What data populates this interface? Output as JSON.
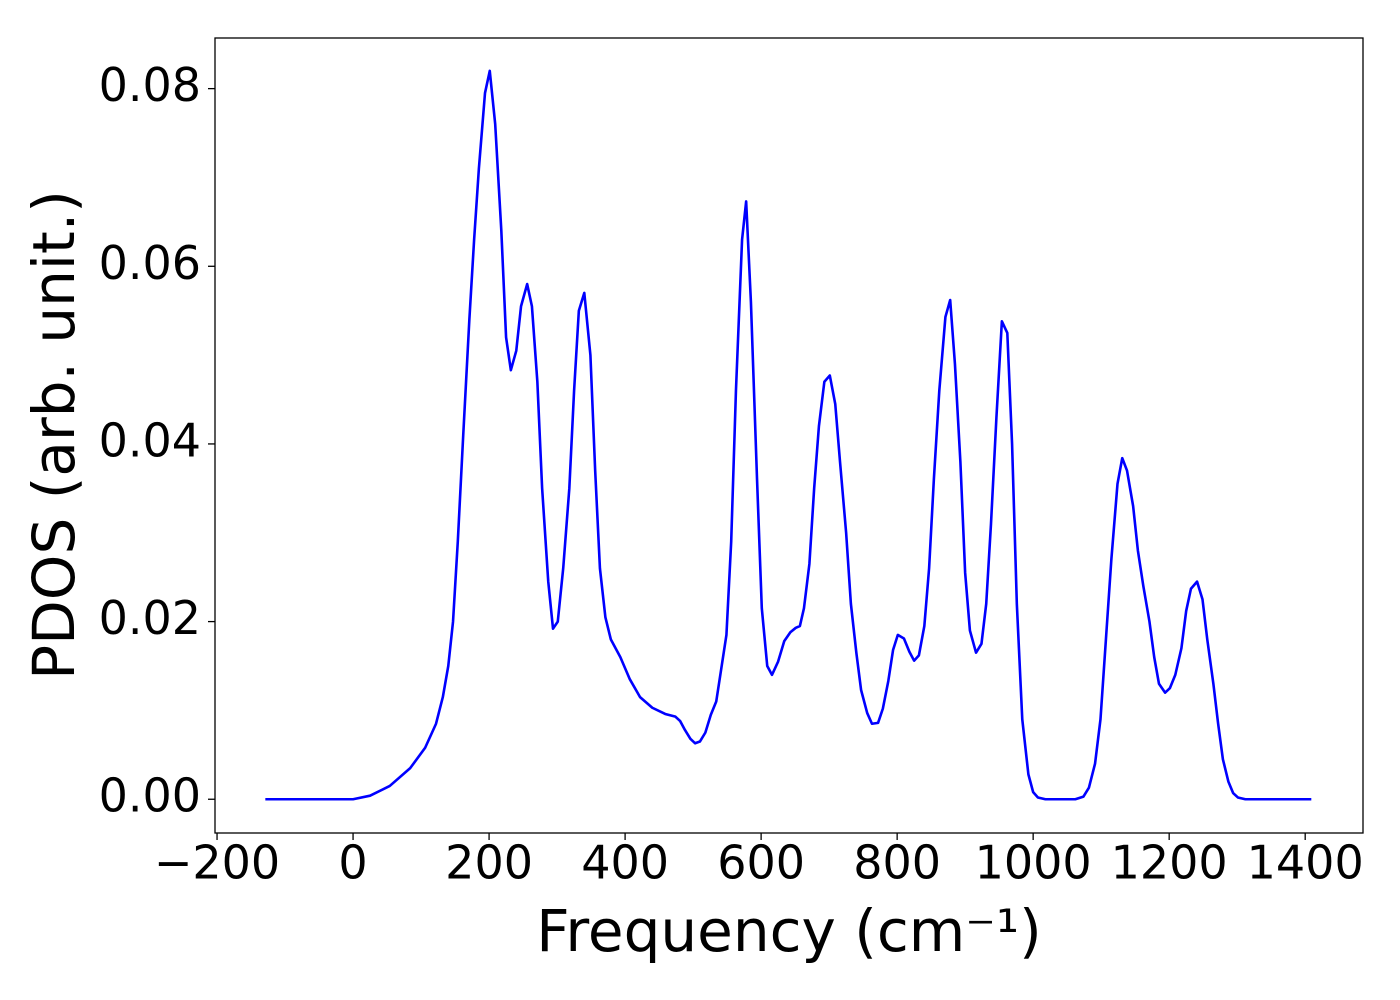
{
  "chart_data": {
    "type": "line",
    "xlabel": "Frequency (cm⁻¹)",
    "ylabel": "PDOS (arb. unit.)",
    "x": [
      -129,
      -60,
      -20,
      0,
      25,
      54,
      84,
      106,
      122,
      132,
      140,
      147,
      154,
      162,
      171,
      178,
      185,
      194,
      201,
      209,
      218,
      225,
      232,
      240,
      247,
      256,
      263,
      271,
      278,
      287,
      294,
      301,
      309,
      318,
      325,
      332,
      340,
      349,
      356,
      363,
      371,
      379,
      393,
      407,
      422,
      440,
      459,
      474,
      481,
      488,
      496,
      503,
      510,
      518,
      526,
      534,
      540,
      549,
      556,
      563,
      572,
      578,
      585,
      594,
      601,
      609,
      616,
      625,
      634,
      643,
      651,
      657,
      663,
      671,
      678,
      685,
      693,
      701,
      709,
      716,
      725,
      732,
      740,
      747,
      756,
      763,
      772,
      779,
      787,
      794,
      801,
      810,
      818,
      825,
      832,
      840,
      847,
      854,
      862,
      871,
      878,
      885,
      893,
      900,
      907,
      916,
      924,
      931,
      938,
      946,
      954,
      962,
      969,
      976,
      984,
      993,
      1000,
      1007,
      1018,
      1062,
      1074,
      1082,
      1091,
      1099,
      1107,
      1115,
      1124,
      1131,
      1138,
      1147,
      1154,
      1162,
      1171,
      1178,
      1185,
      1194,
      1201,
      1209,
      1218,
      1225,
      1232,
      1241,
      1249,
      1256,
      1265,
      1272,
      1279,
      1287,
      1294,
      1301,
      1312,
      1409
    ],
    "series": [
      {
        "name": "PDOS",
        "color": "#0000ff",
        "values": [
          0,
          0,
          0,
          0,
          0.0004,
          0.0015,
          0.0035,
          0.0058,
          0.0085,
          0.0115,
          0.015,
          0.02,
          0.029,
          0.041,
          0.054,
          0.063,
          0.071,
          0.0795,
          0.082,
          0.076,
          0.064,
          0.052,
          0.0483,
          0.0505,
          0.0555,
          0.058,
          0.0555,
          0.047,
          0.035,
          0.0245,
          0.0192,
          0.02,
          0.026,
          0.035,
          0.046,
          0.055,
          0.057,
          0.05,
          0.037,
          0.026,
          0.0205,
          0.018,
          0.016,
          0.0135,
          0.0115,
          0.0103,
          0.0096,
          0.0093,
          0.0088,
          0.0078,
          0.0068,
          0.0063,
          0.0065,
          0.0075,
          0.0095,
          0.011,
          0.014,
          0.0185,
          0.029,
          0.046,
          0.063,
          0.0673,
          0.056,
          0.036,
          0.0215,
          0.015,
          0.014,
          0.0155,
          0.0178,
          0.0188,
          0.0193,
          0.0195,
          0.0215,
          0.0265,
          0.035,
          0.042,
          0.047,
          0.0477,
          0.0445,
          0.038,
          0.03,
          0.022,
          0.0165,
          0.0123,
          0.0097,
          0.0085,
          0.0086,
          0.0102,
          0.0133,
          0.0168,
          0.0185,
          0.0181,
          0.0166,
          0.0156,
          0.0162,
          0.0195,
          0.026,
          0.036,
          0.046,
          0.0543,
          0.0562,
          0.049,
          0.038,
          0.0255,
          0.019,
          0.0165,
          0.0175,
          0.022,
          0.031,
          0.043,
          0.0538,
          0.0525,
          0.04,
          0.022,
          0.009,
          0.0028,
          0.0008,
          0.0002,
          0,
          0,
          0.0003,
          0.0013,
          0.004,
          0.009,
          0.018,
          0.027,
          0.0355,
          0.0384,
          0.037,
          0.033,
          0.028,
          0.024,
          0.02,
          0.016,
          0.013,
          0.012,
          0.0125,
          0.014,
          0.017,
          0.0212,
          0.0237,
          0.0245,
          0.0225,
          0.018,
          0.013,
          0.0085,
          0.0045,
          0.002,
          0.0007,
          0.0002,
          0,
          0
        ]
      }
    ],
    "xlim": [
      -203,
      1485
    ],
    "ylim": [
      -0.0038,
      0.0857
    ],
    "xticks": [
      {
        "value": -200,
        "label": "−200"
      },
      0,
      200,
      400,
      600,
      800,
      1000,
      1200,
      1400
    ],
    "yticks": [
      {
        "value": 0,
        "label": "0.00"
      },
      {
        "value": 0.02,
        "label": "0.02"
      },
      {
        "value": 0.04,
        "label": "0.04"
      },
      {
        "value": 0.06,
        "label": "0.06"
      },
      {
        "value": 0.08,
        "label": "0.08"
      }
    ],
    "grid": false
  }
}
